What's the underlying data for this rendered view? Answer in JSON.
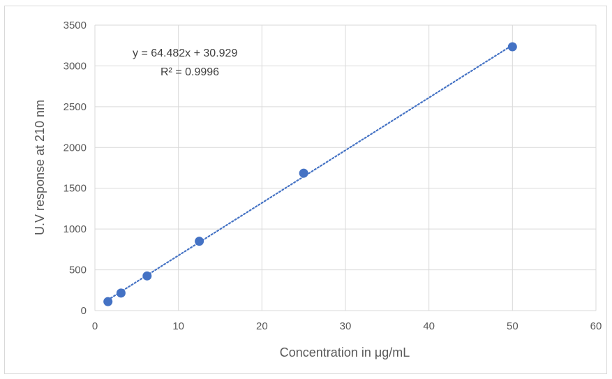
{
  "chart_data": {
    "type": "scatter",
    "title": "",
    "xlabel": "Concentration in μg/mL",
    "ylabel": "U.V response at 210 nm",
    "xlim": [
      0,
      60
    ],
    "ylim": [
      0,
      3500
    ],
    "x_ticks": [
      0,
      10,
      20,
      30,
      40,
      50,
      60
    ],
    "y_ticks": [
      0,
      500,
      1000,
      1500,
      2000,
      2500,
      3000,
      3500
    ],
    "grid": true,
    "legend": "none",
    "colors": {
      "marker": "#4472c4",
      "trendline": "#4472c4",
      "grid": "#d9d9d9"
    },
    "series": [
      {
        "x": [
          1.5625,
          3.125,
          6.25,
          12.5,
          25,
          50
        ],
        "y": [
          110,
          215,
          425,
          850,
          1685,
          3235
        ]
      }
    ],
    "trendline": {
      "type": "linear",
      "slope": 64.482,
      "intercept": 30.929
    },
    "annotations": {
      "equation": "y = 64.482x + 30.929",
      "r_squared": "R² = 0.9996"
    }
  }
}
